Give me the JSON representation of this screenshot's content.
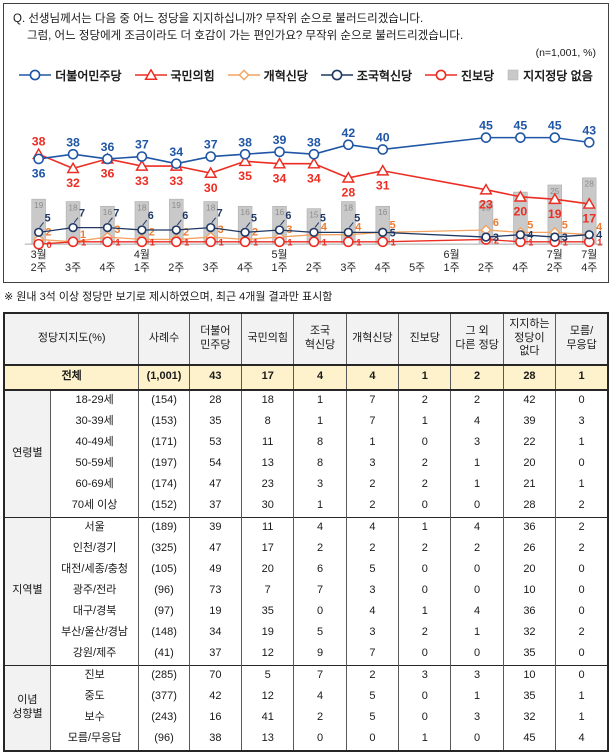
{
  "question": {
    "line1": "Q. 선생님께서는 다음 중 어느 정당을 지지하십니까? 무작위 순으로 불러드리겠습니다.",
    "line2": "그럼, 어느 정당에게 조금이라도 더 호감이 가는 편인가요? 무작위 순으로 불러드리겠습니다.",
    "n_label": "(n=1,001, %)"
  },
  "legend": [
    {
      "label": "더불어민주당",
      "marker": "circle",
      "color": "#2056A6"
    },
    {
      "label": "국민의힘",
      "marker": "triangle",
      "color": "#EC2D23"
    },
    {
      "label": "개혁신당",
      "marker": "diamond",
      "color": "#F3A361"
    },
    {
      "label": "조국혁신당",
      "marker": "circle",
      "color": "#1F3864"
    },
    {
      "label": "진보당",
      "marker": "circle",
      "color": "#EC2D23"
    },
    {
      "label": "지지정당 없음",
      "marker": "square",
      "color": "#C9C9C9"
    }
  ],
  "chart_data": {
    "type": "line",
    "unit": "%",
    "ylim": [
      0,
      50
    ],
    "grid": false,
    "legend_position": "top",
    "categories": [
      "3월 2주",
      "3월 3주",
      "3월 4주",
      "4월 1주",
      "4월 2주",
      "4월 3주",
      "4월 4주",
      "5월 1주",
      "5월 2주",
      "5월 3주",
      "5월 4주",
      "5월 5주",
      "6월 1주",
      "6월 2주",
      "6월 4주",
      "7월 2주",
      "7월 4주"
    ],
    "x_ticks": [
      [
        "3월",
        "2주"
      ],
      [
        "",
        "3주"
      ],
      [
        "",
        "4주"
      ],
      [
        "4월",
        "1주"
      ],
      [
        "",
        "2주"
      ],
      [
        "",
        "3주"
      ],
      [
        "",
        "4주"
      ],
      [
        "5월",
        "1주"
      ],
      [
        "",
        "2주"
      ],
      [
        "",
        "3주"
      ],
      [
        "",
        "4주"
      ],
      [
        "",
        "5주"
      ],
      [
        "6월",
        "1주"
      ],
      [
        "",
        "2주"
      ],
      [
        "",
        "4주"
      ],
      [
        "7월",
        "2주"
      ],
      [
        "7월",
        "4주"
      ]
    ],
    "series": [
      {
        "key": "minju",
        "name": "더불어민주당",
        "marker": "circle",
        "color": "#2056A6",
        "label_color": "#2056A6",
        "values": [
          36,
          38,
          36,
          37,
          34,
          37,
          38,
          39,
          38,
          42,
          40,
          null,
          null,
          45,
          45,
          45,
          43
        ]
      },
      {
        "key": "kukmin",
        "name": "국민의힘",
        "marker": "triangle",
        "color": "#EC2D23",
        "label_color": "#EC2D23",
        "values": [
          38,
          32,
          36,
          33,
          33,
          30,
          35,
          34,
          34,
          28,
          31,
          null,
          null,
          23,
          20,
          19,
          17
        ]
      },
      {
        "key": "gaehyeok",
        "name": "개혁신당",
        "marker": "diamond",
        "color": "#F3A361",
        "label_color": "#ED7D31",
        "values": [
          2,
          1,
          3,
          2,
          2,
          3,
          2,
          3,
          4,
          4,
          5,
          null,
          null,
          6,
          5,
          5,
          4
        ]
      },
      {
        "key": "jogug",
        "name": "조국혁신당",
        "marker": "circle",
        "color": "#1F3864",
        "label_color": "#1F3864",
        "values": [
          5,
          7,
          7,
          6,
          6,
          7,
          5,
          6,
          5,
          5,
          5,
          null,
          null,
          3,
          4,
          3,
          4
        ]
      },
      {
        "key": "jinbo",
        "name": "진보당",
        "marker": "circle",
        "color": "#EC2D23",
        "label_color": "#EC2D23",
        "values": [
          0,
          1,
          1,
          1,
          1,
          1,
          1,
          1,
          1,
          1,
          1,
          null,
          null,
          2,
          1,
          1,
          1
        ]
      }
    ],
    "bars": {
      "name": "지지정당 없음",
      "color": "#C9C9C9",
      "border": "#ADADAD",
      "label_color": "#8C8C8C",
      "values": [
        19,
        18,
        16,
        18,
        19,
        18,
        16,
        16,
        15,
        18,
        16,
        null,
        null,
        18,
        22,
        25,
        28
      ]
    }
  },
  "note": "※ 원내 3석 이상 정당만 보기로 제시하였으며, 최근 4개월 결과만 표시함",
  "table": {
    "col1_header": "정당지지도(%)",
    "col2_header": "사례수",
    "value_headers": [
      "더불어\n민주당",
      "국민의힘",
      "조국\n혁신당",
      "개혁신당",
      "진보당",
      "그 외\n다른 정당",
      "지지하는\n정당이\n없다",
      "모름/\n무응답"
    ],
    "total_row": {
      "label": "전체",
      "n": "(1,001)",
      "values": [
        43,
        17,
        4,
        4,
        1,
        2,
        28,
        1
      ]
    },
    "groups": [
      {
        "name": "연령별",
        "rows": [
          {
            "label": "18-29세",
            "n": "(154)",
            "values": [
              28,
              18,
              1,
              7,
              2,
              2,
              42,
              0
            ]
          },
          {
            "label": "30-39세",
            "n": "(153)",
            "values": [
              35,
              8,
              1,
              7,
              1,
              4,
              39,
              3
            ]
          },
          {
            "label": "40-49세",
            "n": "(171)",
            "values": [
              53,
              11,
              8,
              1,
              0,
              3,
              22,
              1
            ]
          },
          {
            "label": "50-59세",
            "n": "(197)",
            "values": [
              54,
              13,
              8,
              3,
              2,
              1,
              20,
              0
            ]
          },
          {
            "label": "60-69세",
            "n": "(174)",
            "values": [
              47,
              23,
              3,
              2,
              2,
              1,
              21,
              1
            ]
          },
          {
            "label": "70세 이상",
            "n": "(152)",
            "values": [
              37,
              30,
              1,
              2,
              0,
              0,
              28,
              2
            ]
          }
        ]
      },
      {
        "name": "지역별",
        "rows": [
          {
            "label": "서울",
            "n": "(189)",
            "values": [
              39,
              11,
              4,
              4,
              1,
              4,
              36,
              2
            ]
          },
          {
            "label": "인천/경기",
            "n": "(325)",
            "values": [
              47,
              17,
              2,
              2,
              2,
              2,
              26,
              2
            ]
          },
          {
            "label": "대전/세종/충청",
            "n": "(105)",
            "values": [
              49,
              20,
              6,
              5,
              0,
              0,
              20,
              0
            ]
          },
          {
            "label": "광주/전라",
            "n": "(96)",
            "values": [
              73,
              7,
              7,
              3,
              0,
              0,
              10,
              0
            ]
          },
          {
            "label": "대구/경북",
            "n": "(97)",
            "values": [
              19,
              35,
              0,
              4,
              1,
              4,
              36,
              0
            ]
          },
          {
            "label": "부산/울산/경남",
            "n": "(148)",
            "values": [
              34,
              19,
              5,
              3,
              2,
              1,
              32,
              2
            ]
          },
          {
            "label": "강원/제주",
            "n": "(41)",
            "values": [
              37,
              12,
              9,
              7,
              0,
              0,
              35,
              0
            ]
          }
        ]
      },
      {
        "name": "이념\n성향별",
        "rows": [
          {
            "label": "진보",
            "n": "(285)",
            "values": [
              70,
              5,
              7,
              2,
              3,
              3,
              10,
              0
            ]
          },
          {
            "label": "중도",
            "n": "(377)",
            "values": [
              42,
              12,
              4,
              5,
              0,
              1,
              35,
              1
            ]
          },
          {
            "label": "보수",
            "n": "(243)",
            "values": [
              16,
              41,
              2,
              5,
              0,
              3,
              32,
              1
            ]
          },
          {
            "label": "모름/무응답",
            "n": "(96)",
            "values": [
              38,
              13,
              0,
              0,
              1,
              0,
              45,
              4
            ]
          }
        ]
      }
    ]
  }
}
